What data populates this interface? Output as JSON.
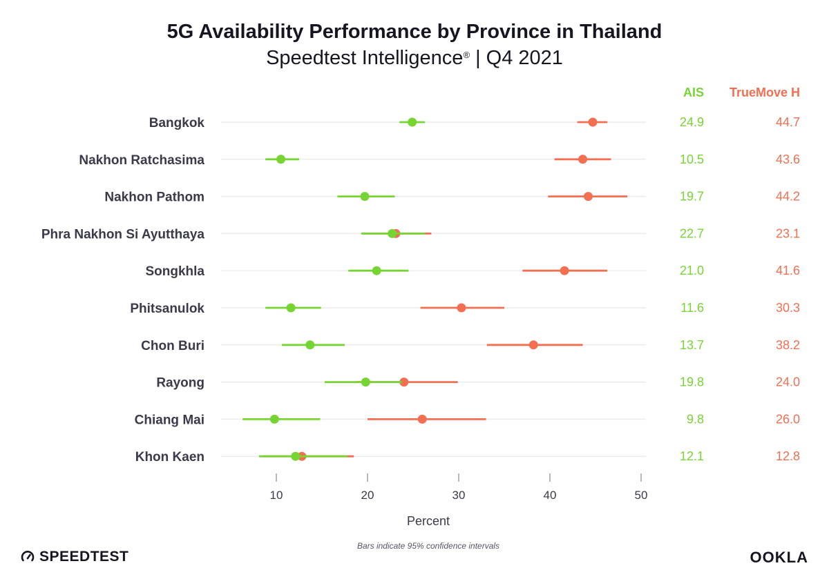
{
  "header": {
    "title": "5G Availability Performance by Province in Thailand",
    "subtitle_main": "Speedtest Intelligence",
    "subtitle_reg": "®",
    "subtitle_tail": " | Q4 2021"
  },
  "footer": {
    "note": "Bars indicate 95% confidence intervals",
    "speedtest_label": "SPEEDTEST",
    "ookla_label": "OOKLA"
  },
  "colors": {
    "AIS": "#77d533",
    "TrueMove H": "#f26f52",
    "grid": "#ececec",
    "axis": "#888888"
  },
  "chart_data": {
    "type": "dot-interval",
    "title": "5G Availability Performance by Province in Thailand",
    "subtitle": "Speedtest Intelligence® | Q4 2021",
    "xlabel": "Percent",
    "ylabel": "",
    "xlim": [
      4,
      50
    ],
    "xticks": [
      10,
      20,
      30,
      40,
      50
    ],
    "grid": true,
    "legend": "top-right",
    "categories": [
      "Bangkok",
      "Nakhon Ratchasima",
      "Nakhon Pathom",
      "Phra Nakhon Si Ayutthaya",
      "Songkhla",
      "Phitsanulok",
      "Chon Buri",
      "Rayong",
      "Chiang Mai",
      "Khon Kaen"
    ],
    "series": [
      {
        "name": "AIS",
        "values": [
          24.9,
          10.5,
          19.7,
          22.7,
          21.0,
          11.6,
          13.7,
          19.8,
          9.8,
          12.1
        ],
        "labels": [
          "24.9",
          "10.5",
          "19.7",
          "22.7",
          "21.0",
          "11.6",
          "13.7",
          "19.8",
          "9.8",
          "12.1"
        ],
        "ci_low": [
          23.5,
          8.8,
          16.7,
          19.3,
          17.9,
          8.8,
          10.6,
          15.3,
          6.3,
          8.1
        ],
        "ci_high": [
          26.3,
          12.5,
          23.0,
          26.3,
          24.5,
          14.9,
          17.5,
          23.8,
          14.8,
          17.8
        ]
      },
      {
        "name": "TrueMove H",
        "values": [
          44.7,
          43.6,
          44.2,
          23.1,
          41.6,
          30.3,
          38.2,
          24.0,
          26.0,
          12.8
        ],
        "labels": [
          "44.7",
          "43.6",
          "44.2",
          "23.1",
          "41.6",
          "30.3",
          "38.2",
          "24.0",
          "26.0",
          "12.8"
        ],
        "ci_low": [
          43.0,
          40.5,
          39.8,
          19.5,
          37.0,
          25.8,
          33.1,
          18.7,
          20.0,
          8.6
        ],
        "ci_high": [
          46.3,
          46.7,
          48.5,
          27.0,
          46.3,
          35.0,
          43.6,
          29.9,
          33.0,
          18.5
        ]
      }
    ]
  }
}
